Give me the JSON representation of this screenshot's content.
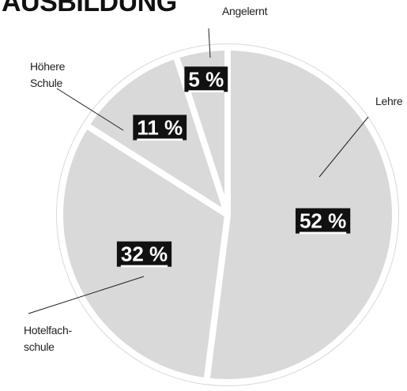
{
  "chart_data": {
    "type": "pie",
    "title": "AUSBILDUNG",
    "categories": [
      "Lehre",
      "Hotelfach-\nschule",
      "Höhere\nSchule",
      "Angelernt"
    ],
    "values": [
      52,
      32,
      11,
      5
    ],
    "value_labels": [
      "52 %",
      "32 %",
      "11 %",
      "5 %"
    ],
    "color": "#d9d9d9"
  }
}
